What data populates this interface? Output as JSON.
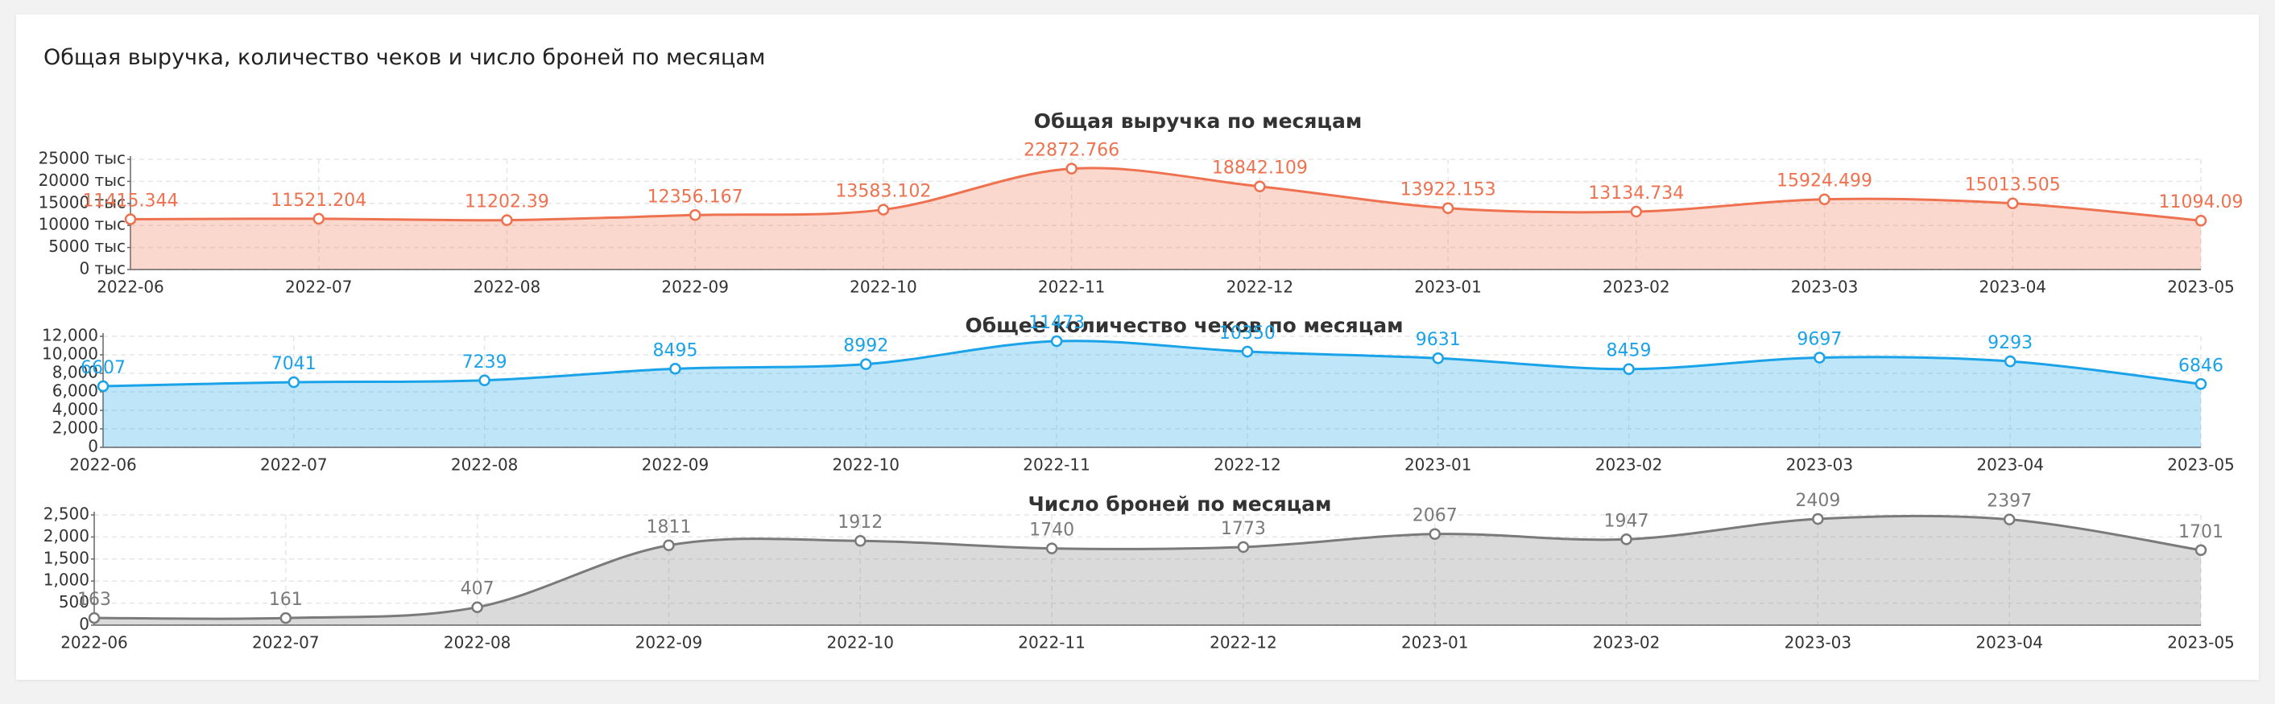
{
  "header": {
    "title": "Общая выручка, количество чеков и число броней по месяцам"
  },
  "chart_data": [
    {
      "type": "area",
      "title": "Общая выручка по месяцам",
      "categories": [
        "2022-06",
        "2022-07",
        "2022-08",
        "2022-09",
        "2022-10",
        "2022-11",
        "2022-12",
        "2023-01",
        "2023-02",
        "2023-03",
        "2023-04",
        "2023-05"
      ],
      "values": [
        11415.344,
        11521.204,
        11202.39,
        12356.167,
        13583.102,
        22872.766,
        18842.109,
        13922.153,
        13134.734,
        15924.499,
        15013.505,
        11094.09
      ],
      "color": "#ef7250",
      "ylim": [
        0,
        25000
      ],
      "yticks": [
        {
          "value": 0,
          "label": "0 тыс"
        },
        {
          "value": 5000,
          "label": "5000 тыс"
        },
        {
          "value": 10000,
          "label": "10000 тыс"
        },
        {
          "value": 15000,
          "label": "15000 тыс"
        },
        {
          "value": 20000,
          "label": "20000 тыс"
        },
        {
          "value": 25000,
          "label": "25000 тыс"
        }
      ],
      "grid": true
    },
    {
      "type": "area",
      "title": "Общее количество чеков по месяцам",
      "categories": [
        "2022-06",
        "2022-07",
        "2022-08",
        "2022-09",
        "2022-10",
        "2022-11",
        "2022-12",
        "2023-01",
        "2023-02",
        "2023-03",
        "2023-04",
        "2023-05"
      ],
      "values": [
        6607,
        7041,
        7239,
        8495,
        8992,
        11473,
        10350,
        9631,
        8459,
        9697,
        9293,
        6846
      ],
      "color": "#1aa3e8",
      "ylim": [
        0,
        12000
      ],
      "yticks": [
        0,
        {
          "value": 2000,
          "label": "2,000"
        },
        {
          "value": 4000,
          "label": "4,000"
        },
        {
          "value": 6000,
          "label": "6,000"
        },
        {
          "value": 8000,
          "label": "8,000"
        },
        {
          "value": 10000,
          "label": "10,000"
        },
        {
          "value": 12000,
          "label": "12,000"
        }
      ],
      "grid": true
    },
    {
      "type": "area",
      "title": "Число броней по месяцам",
      "categories": [
        "2022-06",
        "2022-07",
        "2022-08",
        "2022-09",
        "2022-10",
        "2022-11",
        "2022-12",
        "2023-01",
        "2023-02",
        "2023-03",
        "2023-04",
        "2023-05"
      ],
      "values": [
        163,
        161,
        407,
        1811,
        1912,
        1740,
        1773,
        2067,
        1947,
        2409,
        2397,
        1701
      ],
      "color": "#7a7a7a",
      "ylim": [
        0,
        2500
      ],
      "yticks": [
        0,
        500,
        {
          "value": 1000,
          "label": "1,000"
        },
        {
          "value": 1500,
          "label": "1,500"
        },
        {
          "value": 2000,
          "label": "2,000"
        },
        {
          "value": 2500,
          "label": "2,500"
        }
      ],
      "grid": true
    }
  ]
}
